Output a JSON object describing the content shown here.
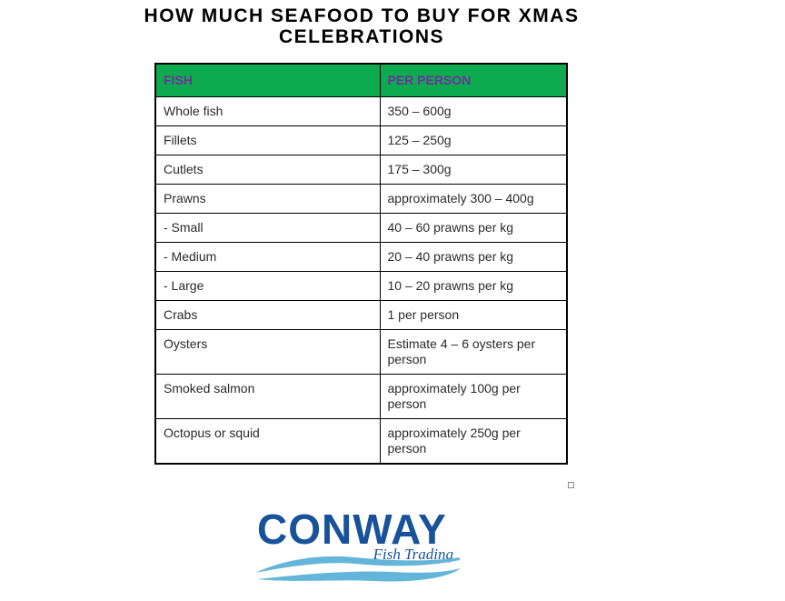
{
  "page": {
    "title_line1": "HOW MUCH SEAFOOD TO BUY FOR XMAS",
    "title_line2": "CELEBRATIONS"
  },
  "table": {
    "headers": [
      "FISH",
      "PER PERSON"
    ],
    "rows": [
      [
        "Whole fish",
        "350 – 600g"
      ],
      [
        "Fillets",
        "125 – 250g"
      ],
      [
        "Cutlets",
        "175 – 300g"
      ],
      [
        "Prawns",
        "approximately 300 – 400g"
      ],
      [
        "- Small",
        "40 – 60 prawns per kg"
      ],
      [
        "- Medium",
        "20 – 40 prawns per kg"
      ],
      [
        "- Large",
        "10 – 20 prawns per kg"
      ],
      [
        "Crabs",
        "1 per person"
      ],
      [
        "Oysters",
        "Estimate 4 – 6 oysters per person"
      ],
      [
        "Smoked salmon",
        "approximately 100g per person"
      ],
      [
        "Octopus or squid",
        "approximately 250g per person"
      ]
    ]
  },
  "logo": {
    "name": "CONWAY",
    "tagline": "Fish Trading"
  },
  "colors": {
    "header_bg": "#0daa4f",
    "header_text": "#7030a0",
    "logo_blue": "#17529b",
    "wave_blue": "#63b5d9"
  }
}
